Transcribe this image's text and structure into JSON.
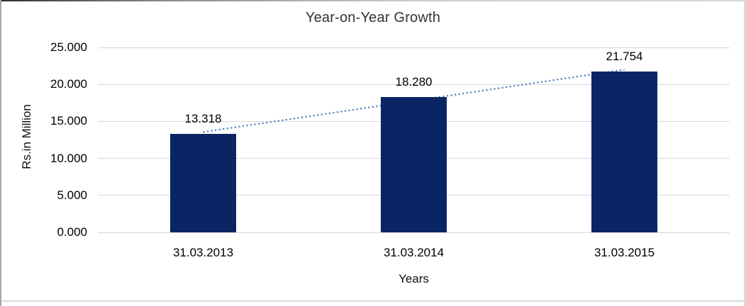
{
  "chart_data": {
    "type": "bar",
    "title": "Year-on-Year Growth",
    "xlabel": "Years",
    "ylabel": "Rs.in Million",
    "categories": [
      "31.03.2013",
      "31.03.2014",
      "31.03.2015"
    ],
    "values": [
      13.318,
      18.28,
      21.754
    ],
    "value_labels": [
      "13.318",
      "18.280",
      "21.754"
    ],
    "y_ticks": [
      "0.000",
      "5.000",
      "10.000",
      "15.000",
      "20.000",
      "25.000"
    ],
    "ylim": [
      0,
      25
    ],
    "grid": "horizontal",
    "legend": "none",
    "trendline": {
      "type": "linear",
      "style": "dotted",
      "color": "#4f81bd"
    },
    "colors": {
      "bar": "#0a2563",
      "gridline": "#d9d9d9",
      "title": "#333333",
      "text": "#000000"
    }
  }
}
